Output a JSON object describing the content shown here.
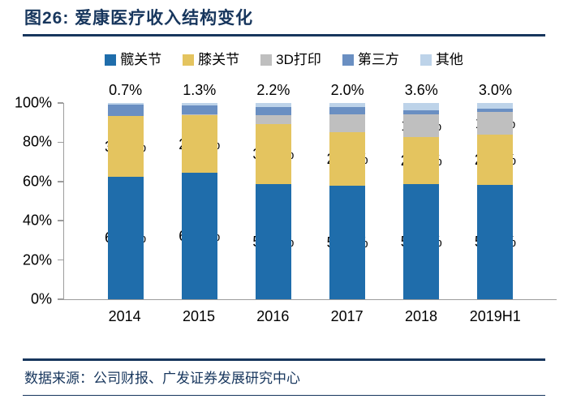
{
  "title": {
    "text": "图26:  爱康医疗收入结构变化"
  },
  "footer": {
    "source": "数据来源：公司财报、广发证券发展研究中心"
  },
  "colors": {
    "accent_navy": "#17365D",
    "axis_gray": "#9d9d9d",
    "label_black": "#000000"
  },
  "chart_data": {
    "type": "bar",
    "subtype": "stacked-100-percent",
    "title": "爱康医疗收入结构变化",
    "categories": [
      "2014",
      "2015",
      "2016",
      "2017",
      "2018",
      "2019H1"
    ],
    "series": [
      {
        "key": "hip",
        "name": "髋关节",
        "color": "#1F6DAB",
        "values": [
          62.5,
          64.4,
          58.7,
          57.8,
          58.6,
          58.4
        ],
        "labels": [
          "62.5%",
          "64.4%",
          "58.7%",
          "57.8%",
          "58.6%",
          "58.4%"
        ],
        "label_position": "inside"
      },
      {
        "key": "knee",
        "name": "膝关节",
        "color": "#E4C45F",
        "values": [
          30.7,
          29.4,
          30.7,
          27.3,
          24.2,
          25.3
        ],
        "labels": [
          "30.7%",
          "29.4%",
          "30.7%",
          "27.3%",
          "24.2%",
          "25.3%"
        ],
        "label_position": "inside"
      },
      {
        "key": "print3d",
        "name": "3D打印",
        "color": "#BFBFBF",
        "values": [
          0.0,
          0.5,
          4.5,
          9.0,
          11.6,
          11.7
        ],
        "labels": [
          "0.0%",
          "0.5%",
          "4.5%",
          "9.0%",
          "11.6%",
          "11.7%"
        ],
        "label_position": "inside"
      },
      {
        "key": "thirdparty",
        "name": "第三方",
        "color": "#6A8FC2",
        "values": [
          6.1,
          4.4,
          3.9,
          3.9,
          2.0,
          1.6
        ],
        "labels": null,
        "label_position": "none"
      },
      {
        "key": "other",
        "name": "其他",
        "color": "#BDD3E9",
        "values": [
          0.7,
          1.3,
          2.2,
          2.0,
          3.6,
          3.0
        ],
        "labels": [
          "0.7%",
          "1.3%",
          "2.2%",
          "2.0%",
          "3.6%",
          "3.0%"
        ],
        "label_position": "above"
      }
    ],
    "y_ticks": [
      {
        "label": "100%",
        "value": 100
      },
      {
        "label": "80%",
        "value": 80
      },
      {
        "label": "60%",
        "value": 60
      },
      {
        "label": "40%",
        "value": 40
      },
      {
        "label": "20%",
        "value": 20
      },
      {
        "label": "0%",
        "value": 0
      }
    ],
    "ylim": [
      0,
      100
    ],
    "gridlines": false,
    "legend_position": "top-center"
  }
}
